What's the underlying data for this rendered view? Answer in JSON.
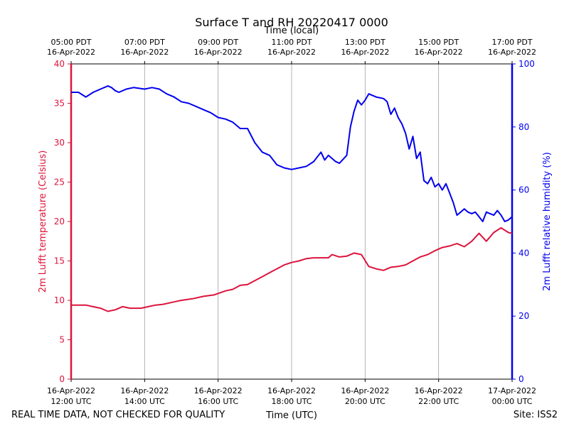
{
  "colors": {
    "temperature": "#dc143c",
    "humidity": "#0000ee",
    "grid": "#a0a0a0",
    "text": "#000000"
  },
  "footer": {
    "disclaimer": "REAL TIME DATA, NOT CHECKED FOR QUALITY",
    "site": "Site: ISS2"
  },
  "chart_data": {
    "type": "line",
    "title": "Surface T and RH 20220417 0000",
    "xlabel": "Time (UTC)",
    "xlabel_top": "Time (local)",
    "ylabel": "2m Lufft temperature (Celsius)",
    "ylabel_right": "2m Lufft relative humidity (%)",
    "x_unit": "hours since 16-Apr-2022 12:00 UTC",
    "xlim": [
      0,
      12
    ],
    "ylim": [
      0,
      40
    ],
    "ylim_right": [
      0,
      100
    ],
    "grid": "vertical only",
    "x_ticks": [
      {
        "x": 0,
        "date": "16-Apr-2022",
        "time": "12:00 UTC"
      },
      {
        "x": 2,
        "date": "16-Apr-2022",
        "time": "14:00 UTC"
      },
      {
        "x": 4,
        "date": "16-Apr-2022",
        "time": "16:00 UTC"
      },
      {
        "x": 6,
        "date": "16-Apr-2022",
        "time": "18:00 UTC"
      },
      {
        "x": 8,
        "date": "16-Apr-2022",
        "time": "20:00 UTC"
      },
      {
        "x": 10,
        "date": "16-Apr-2022",
        "time": "22:00 UTC"
      },
      {
        "x": 12,
        "date": "17-Apr-2022",
        "time": "00:00 UTC"
      }
    ],
    "x_ticks_top": [
      {
        "x": 0,
        "time": "05:00 PDT",
        "date": "16-Apr-2022"
      },
      {
        "x": 2,
        "time": "07:00 PDT",
        "date": "16-Apr-2022"
      },
      {
        "x": 4,
        "time": "09:00 PDT",
        "date": "16-Apr-2022"
      },
      {
        "x": 6,
        "time": "11:00 PDT",
        "date": "16-Apr-2022"
      },
      {
        "x": 8,
        "time": "13:00 PDT",
        "date": "16-Apr-2022"
      },
      {
        "x": 10,
        "time": "15:00 PDT",
        "date": "16-Apr-2022"
      },
      {
        "x": 12,
        "time": "17:00 PDT",
        "date": "16-Apr-2022"
      }
    ],
    "y_ticks": [
      0,
      5,
      10,
      15,
      20,
      25,
      30,
      35,
      40
    ],
    "y_ticks_right": [
      0,
      20,
      40,
      60,
      80,
      100
    ],
    "series": [
      {
        "name": "2m Lufft temperature (Celsius)",
        "axis": "left",
        "color": "#dc143c",
        "x": [
          0,
          0.4,
          0.8,
          1.0,
          1.2,
          1.4,
          1.6,
          1.9,
          2.1,
          2.3,
          2.5,
          2.8,
          3.0,
          3.3,
          3.6,
          3.9,
          4.2,
          4.4,
          4.6,
          4.8,
          5.0,
          5.2,
          5.4,
          5.6,
          5.8,
          6.0,
          6.2,
          6.4,
          6.6,
          6.8,
          7.0,
          7.1,
          7.3,
          7.5,
          7.7,
          7.9,
          8.1,
          8.3,
          8.5,
          8.7,
          8.9,
          9.1,
          9.3,
          9.5,
          9.7,
          9.9,
          10.1,
          10.3,
          10.5,
          10.7,
          10.9,
          11.1,
          11.3,
          11.5,
          11.7,
          11.9,
          12.0
        ],
        "values": [
          9.4,
          9.4,
          9.0,
          8.6,
          8.8,
          9.2,
          9.0,
          9.0,
          9.2,
          9.4,
          9.5,
          9.8,
          10.0,
          10.2,
          10.5,
          10.7,
          11.2,
          11.4,
          11.9,
          12.0,
          12.5,
          13.0,
          13.5,
          14.0,
          14.5,
          14.8,
          15.0,
          15.3,
          15.4,
          15.4,
          15.4,
          15.8,
          15.5,
          15.6,
          16.0,
          15.8,
          14.3,
          14.0,
          13.8,
          14.2,
          14.3,
          14.5,
          15.0,
          15.5,
          15.8,
          16.3,
          16.7,
          16.9,
          17.2,
          16.8,
          17.5,
          18.5,
          17.5,
          18.6,
          19.2,
          18.6,
          18.5
        ]
      },
      {
        "name": "2m Lufft relative humidity (%)",
        "axis": "right",
        "color": "#0000ee",
        "x": [
          0,
          0.2,
          0.4,
          0.6,
          0.8,
          1.0,
          1.1,
          1.2,
          1.3,
          1.5,
          1.7,
          2.0,
          2.2,
          2.4,
          2.6,
          2.8,
          3.0,
          3.2,
          3.4,
          3.6,
          3.8,
          4.0,
          4.2,
          4.4,
          4.6,
          4.8,
          5.0,
          5.2,
          5.4,
          5.6,
          5.8,
          6.0,
          6.2,
          6.4,
          6.6,
          6.8,
          6.9,
          7.0,
          7.2,
          7.3,
          7.5,
          7.6,
          7.7,
          7.8,
          7.9,
          8.0,
          8.1,
          8.3,
          8.5,
          8.6,
          8.7,
          8.8,
          8.9,
          9.0,
          9.1,
          9.2,
          9.3,
          9.4,
          9.5,
          9.6,
          9.7,
          9.8,
          9.9,
          10.0,
          10.1,
          10.2,
          10.3,
          10.4,
          10.5,
          10.6,
          10.7,
          10.8,
          10.9,
          11.0,
          11.1,
          11.2,
          11.3,
          11.4,
          11.5,
          11.6,
          11.7,
          11.8,
          11.9,
          12.0
        ],
        "values": [
          91,
          91,
          89.5,
          91,
          92,
          93,
          92.5,
          91.5,
          91,
          92,
          92.5,
          92,
          92.5,
          92,
          90.5,
          89.5,
          88,
          87.5,
          86.5,
          85.5,
          84.5,
          83,
          82.5,
          81.5,
          79.5,
          79.5,
          75,
          72,
          71,
          68,
          67,
          66.5,
          67,
          67.5,
          69,
          72,
          69.5,
          71,
          69,
          68.5,
          71,
          80,
          85,
          88.5,
          87,
          88.5,
          90.5,
          89.5,
          89,
          88,
          84,
          86,
          83,
          81,
          78,
          73,
          77,
          70,
          72,
          63,
          62,
          64,
          61,
          62,
          60,
          62,
          59,
          56,
          52,
          53,
          54,
          53,
          52.5,
          53,
          51.5,
          50,
          53,
          52.5,
          52,
          53.5,
          52,
          50,
          50.5,
          51.5
        ]
      }
    ]
  }
}
